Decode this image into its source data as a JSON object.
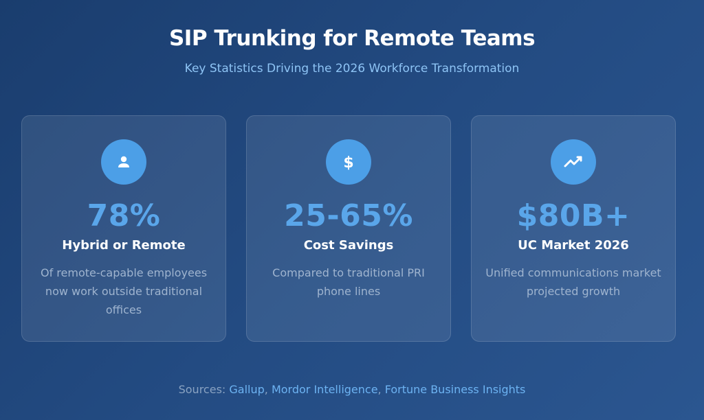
{
  "header": {
    "title": "SIP Trunking for Remote Teams",
    "subtitle": "Key Statistics Driving the 2026 Workforce Transformation"
  },
  "cards": [
    {
      "icon": "user-icon",
      "value": "78%",
      "label": "Hybrid or Remote",
      "description": "Of remote-capable employees now work outside traditional offices"
    },
    {
      "icon": "dollar-icon",
      "value": "25-65%",
      "label": "Cost Savings",
      "description": "Compared to traditional PRI phone lines"
    },
    {
      "icon": "trend-up-icon",
      "value": "$80B+",
      "label": "UC Market 2026",
      "description": "Unified communications market projected growth"
    }
  ],
  "footer": {
    "prefix": "Sources:",
    "sources": [
      "Gallup",
      "Mordor Intelligence",
      "Fortune Business Insights"
    ],
    "separator": ", "
  },
  "colors": {
    "accent": "#5aa6ea",
    "icon_bg": "#4c9fe7",
    "subtitle": "#8ec4f5"
  }
}
